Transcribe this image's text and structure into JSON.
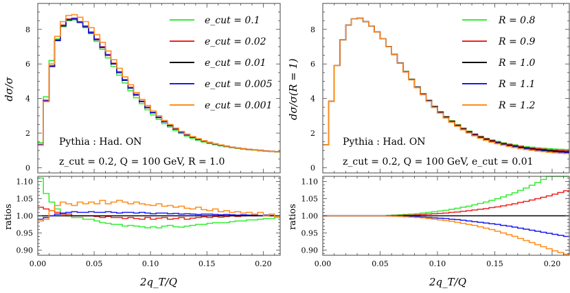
{
  "chart_data": [
    {
      "type": "line",
      "step": true,
      "xlabel": "2q_T/Q",
      "ylabel": "dσ/σ",
      "xlim": [
        0,
        0.215
      ],
      "ylim": [
        -0.3,
        9.5
      ],
      "xticks": [
        "0.00",
        "0.05",
        "0.10",
        "0.15",
        "0.20"
      ],
      "yticks": [
        "0",
        "2",
        "4",
        "6",
        "8"
      ],
      "annotations": [
        "Pythia : Had. ON",
        "z_cut = 0.2, Q = 100 GeV, R = 1.0"
      ],
      "legend_position": "top-right",
      "x": [
        0.0,
        0.005,
        0.01,
        0.015,
        0.02,
        0.025,
        0.03,
        0.035,
        0.04,
        0.045,
        0.05,
        0.055,
        0.06,
        0.065,
        0.07,
        0.075,
        0.08,
        0.085,
        0.09,
        0.095,
        0.1,
        0.105,
        0.11,
        0.115,
        0.12,
        0.125,
        0.13,
        0.135,
        0.14,
        0.145,
        0.15,
        0.155,
        0.16,
        0.165,
        0.17,
        0.175,
        0.18,
        0.185,
        0.19,
        0.195,
        0.2,
        0.205,
        0.21
      ],
      "series": [
        {
          "name": "e_cut = 0.1",
          "color": "#33ee33",
          "values": [
            1.45,
            4.1,
            6.2,
            7.45,
            8.15,
            8.5,
            8.55,
            8.4,
            8.1,
            7.75,
            7.3,
            6.85,
            6.35,
            5.85,
            5.35,
            4.9,
            4.45,
            4.05,
            3.7,
            3.35,
            3.05,
            2.8,
            2.55,
            2.35,
            2.15,
            1.98,
            1.83,
            1.7,
            1.59,
            1.49,
            1.4,
            1.33,
            1.27,
            1.21,
            1.16,
            1.12,
            1.08,
            1.04,
            1.01,
            0.98,
            0.96,
            0.94,
            0.92
          ]
        },
        {
          "name": "e_cut = 0.02",
          "color": "#ee2222",
          "values": [
            1.35,
            3.9,
            5.9,
            7.4,
            8.25,
            8.6,
            8.65,
            8.45,
            8.2,
            7.85,
            7.45,
            7.0,
            6.55,
            6.05,
            5.55,
            5.1,
            4.65,
            4.25,
            3.85,
            3.5,
            3.2,
            2.92,
            2.67,
            2.45,
            2.25,
            2.07,
            1.91,
            1.77,
            1.65,
            1.55,
            1.46,
            1.38,
            1.31,
            1.25,
            1.19,
            1.14,
            1.1,
            1.06,
            1.03,
            1.0,
            0.97,
            0.95,
            0.93
          ]
        },
        {
          "name": "e_cut = 0.01",
          "color": "#000000",
          "values": [
            1.32,
            3.85,
            5.85,
            7.35,
            8.2,
            8.55,
            8.6,
            8.4,
            8.15,
            7.8,
            7.4,
            6.95,
            6.5,
            6.0,
            5.5,
            5.05,
            4.6,
            4.2,
            3.82,
            3.47,
            3.17,
            2.9,
            2.65,
            2.43,
            2.23,
            2.05,
            1.9,
            1.76,
            1.64,
            1.54,
            1.45,
            1.37,
            1.3,
            1.24,
            1.18,
            1.13,
            1.09,
            1.05,
            1.02,
            0.99,
            0.96,
            0.94,
            0.92
          ]
        },
        {
          "name": "e_cut = 0.005",
          "color": "#1a1aee",
          "values": [
            1.33,
            3.87,
            5.87,
            7.37,
            8.22,
            8.57,
            8.62,
            8.42,
            8.17,
            7.82,
            7.42,
            6.97,
            6.52,
            6.02,
            5.52,
            5.07,
            4.62,
            4.22,
            3.84,
            3.49,
            3.19,
            2.92,
            2.66,
            2.44,
            2.24,
            2.06,
            1.91,
            1.77,
            1.65,
            1.55,
            1.46,
            1.38,
            1.31,
            1.25,
            1.19,
            1.14,
            1.1,
            1.06,
            1.03,
            1.0,
            0.97,
            0.95,
            0.93
          ]
        },
        {
          "name": "e_cut = 0.001",
          "color": "#ff8c1a",
          "values": [
            1.3,
            3.82,
            6.0,
            7.6,
            8.45,
            8.8,
            8.85,
            8.7,
            8.45,
            8.1,
            7.7,
            7.25,
            6.75,
            6.25,
            5.75,
            5.25,
            4.8,
            4.35,
            3.95,
            3.6,
            3.28,
            3.0,
            2.73,
            2.5,
            2.29,
            2.1,
            1.94,
            1.8,
            1.68,
            1.57,
            1.47,
            1.39,
            1.32,
            1.25,
            1.19,
            1.14,
            1.1,
            1.06,
            1.02,
            0.99,
            0.97,
            0.95,
            0.92
          ]
        }
      ],
      "ratio_panel": {
        "ylabel": "ratios",
        "ylim": [
          0.885,
          1.115
        ],
        "yticks": [
          "0.90",
          "0.95",
          "1.00",
          "1.05",
          "1.10"
        ],
        "series": [
          {
            "color": "#33ee33",
            "values": [
              1.11,
              1.065,
              1.04,
              1.02,
              1.005,
              1.0,
              0.995,
              0.995,
              0.99,
              0.99,
              0.985,
              0.98,
              0.978,
              0.975,
              0.975,
              0.97,
              0.972,
              0.97,
              0.968,
              0.965,
              0.968,
              0.965,
              0.97,
              0.972,
              0.968,
              0.967,
              0.97,
              0.972,
              0.975,
              0.975,
              0.978,
              0.98,
              0.98,
              0.98,
              0.983,
              0.985,
              0.985,
              0.988,
              0.988,
              0.99,
              0.992,
              0.992,
              0.995
            ]
          },
          {
            "color": "#ee2222",
            "values": [
              1.025,
              1.02,
              1.015,
              1.01,
              1.005,
              1.005,
              1.0,
              1.0,
              1.0,
              1.0,
              0.998,
              0.995,
              0.998,
              0.995,
              0.995,
              0.992,
              0.995,
              0.992,
              0.99,
              0.995,
              0.99,
              0.993,
              0.995,
              0.99,
              0.992,
              0.995,
              0.99,
              0.993,
              0.995,
              0.997,
              0.995,
              0.998,
              0.996,
              0.998,
              1.0,
              0.998,
              1.0,
              1.002,
              1.0,
              1.0,
              1.002,
              1.0,
              1.0
            ]
          },
          {
            "color": "#000000",
            "values": [
              1.0,
              1.0,
              1.0,
              1.0,
              1.0,
              1.0,
              1.0,
              1.0,
              1.0,
              1.0,
              1.0,
              1.0,
              1.0,
              1.0,
              1.0,
              1.0,
              1.0,
              1.0,
              1.0,
              1.0,
              1.0,
              1.0,
              1.0,
              1.0,
              1.0,
              1.0,
              1.0,
              1.0,
              1.0,
              1.0,
              1.0,
              1.0,
              1.0,
              1.0,
              1.0,
              1.0,
              1.0,
              1.0,
              1.0,
              1.0,
              1.0,
              1.0,
              1.0
            ]
          },
          {
            "color": "#1a1aee",
            "values": [
              0.99,
              0.995,
              1.0,
              1.005,
              1.008,
              1.01,
              1.012,
              1.01,
              1.01,
              1.012,
              1.01,
              1.01,
              1.012,
              1.01,
              1.008,
              1.01,
              1.01,
              1.008,
              1.01,
              1.008,
              1.006,
              1.008,
              1.008,
              1.006,
              1.007,
              1.005,
              1.006,
              1.005,
              1.004,
              1.005,
              1.005,
              1.004,
              1.003,
              1.004,
              1.003,
              1.002,
              1.003,
              1.002,
              1.002,
              1.001,
              1.002,
              1.001,
              1.0
            ]
          },
          {
            "color": "#ff8c1a",
            "values": [
              0.985,
              0.99,
              1.015,
              1.03,
              1.04,
              1.035,
              1.03,
              1.04,
              1.035,
              1.04,
              1.035,
              1.045,
              1.035,
              1.04,
              1.045,
              1.04,
              1.035,
              1.04,
              1.035,
              1.032,
              1.03,
              1.035,
              1.028,
              1.03,
              1.025,
              1.028,
              1.022,
              1.02,
              1.025,
              1.018,
              1.015,
              1.02,
              1.012,
              1.015,
              1.01,
              1.012,
              1.008,
              1.01,
              1.005,
              1.01,
              1.0,
              1.005,
              0.998
            ]
          }
        ]
      }
    },
    {
      "type": "line",
      "step": true,
      "xlabel": "2q_T/Q",
      "ylabel": "dσ/σ(R = 1)",
      "xlim": [
        0,
        0.215
      ],
      "ylim": [
        -0.3,
        9.5
      ],
      "xticks": [
        "0.00",
        "0.05",
        "0.10",
        "0.15",
        "0.20"
      ],
      "yticks": [
        "0",
        "2",
        "4",
        "6",
        "8"
      ],
      "annotations": [
        "Pythia : Had. ON",
        "z_cut = 0.2, Q = 100 GeV, e_cut = 0.01"
      ],
      "legend_position": "top-right",
      "x": [
        0.0,
        0.005,
        0.01,
        0.015,
        0.02,
        0.025,
        0.03,
        0.035,
        0.04,
        0.045,
        0.05,
        0.055,
        0.06,
        0.065,
        0.07,
        0.075,
        0.08,
        0.085,
        0.09,
        0.095,
        0.1,
        0.105,
        0.11,
        0.115,
        0.12,
        0.125,
        0.13,
        0.135,
        0.14,
        0.145,
        0.15,
        0.155,
        0.16,
        0.165,
        0.17,
        0.175,
        0.18,
        0.185,
        0.19,
        0.195,
        0.2,
        0.205,
        0.21
      ],
      "base_values": [
        1.32,
        3.85,
        5.9,
        7.4,
        8.25,
        8.6,
        8.65,
        8.45,
        8.2,
        7.85,
        7.45,
        7.0,
        6.55,
        6.05,
        5.55,
        5.1,
        4.65,
        4.25,
        3.87,
        3.52,
        3.2,
        2.92,
        2.67,
        2.44,
        2.24,
        2.06,
        1.9,
        1.76,
        1.64,
        1.54,
        1.45,
        1.37,
        1.3,
        1.24,
        1.18,
        1.13,
        1.09,
        1.05,
        1.02,
        0.99,
        0.96,
        0.94,
        0.92
      ],
      "series": [
        {
          "name": "R = 0.8",
          "color": "#33ee33",
          "ratio": [
            1.0,
            1.0,
            1.0,
            1.0,
            1.0,
            1.0,
            1.0,
            1.0,
            1.0,
            1.0,
            1.0,
            1.001,
            1.002,
            1.003,
            1.004,
            1.005,
            1.006,
            1.008,
            1.01,
            1.012,
            1.014,
            1.016,
            1.019,
            1.022,
            1.025,
            1.028,
            1.032,
            1.036,
            1.04,
            1.045,
            1.05,
            1.055,
            1.061,
            1.067,
            1.074,
            1.081,
            1.089,
            1.097,
            1.106,
            1.115,
            1.125,
            1.135,
            1.145
          ]
        },
        {
          "name": "R = 0.9",
          "color": "#ee2222",
          "ratio": [
            1.0,
            1.0,
            1.0,
            1.0,
            1.0,
            1.0,
            1.0,
            1.0,
            1.0,
            1.0,
            1.0,
            1.0,
            1.001,
            1.001,
            1.002,
            1.002,
            1.003,
            1.004,
            1.005,
            1.006,
            1.007,
            1.008,
            1.01,
            1.011,
            1.013,
            1.015,
            1.017,
            1.019,
            1.021,
            1.024,
            1.026,
            1.029,
            1.032,
            1.035,
            1.039,
            1.042,
            1.046,
            1.05,
            1.054,
            1.058,
            1.063,
            1.068,
            1.073
          ]
        },
        {
          "name": "R = 1.0",
          "color": "#000000",
          "ratio": [
            1.0,
            1.0,
            1.0,
            1.0,
            1.0,
            1.0,
            1.0,
            1.0,
            1.0,
            1.0,
            1.0,
            1.0,
            1.0,
            1.0,
            1.0,
            1.0,
            1.0,
            1.0,
            1.0,
            1.0,
            1.0,
            1.0,
            1.0,
            1.0,
            1.0,
            1.0,
            1.0,
            1.0,
            1.0,
            1.0,
            1.0,
            1.0,
            1.0,
            1.0,
            1.0,
            1.0,
            1.0,
            1.0,
            1.0,
            1.0,
            1.0,
            1.0,
            1.0
          ]
        },
        {
          "name": "R = 1.1",
          "color": "#1a1aee",
          "ratio": [
            1.0,
            1.0,
            1.0,
            1.0,
            1.0,
            1.0,
            1.0,
            1.0,
            1.0,
            1.0,
            1.0,
            1.0,
            0.999,
            0.999,
            0.998,
            0.998,
            0.997,
            0.996,
            0.995,
            0.994,
            0.993,
            0.992,
            0.99,
            0.989,
            0.987,
            0.985,
            0.983,
            0.981,
            0.979,
            0.977,
            0.975,
            0.972,
            0.97,
            0.967,
            0.964,
            0.961,
            0.958,
            0.955,
            0.952,
            0.949,
            0.946,
            0.943,
            0.94
          ]
        },
        {
          "name": "R = 1.2",
          "color": "#ff8c1a",
          "ratio": [
            1.0,
            1.0,
            1.0,
            1.0,
            1.0,
            1.0,
            1.0,
            1.0,
            1.0,
            1.0,
            1.0,
            0.999,
            0.999,
            0.998,
            0.997,
            0.996,
            0.995,
            0.994,
            0.992,
            0.99,
            0.988,
            0.986,
            0.984,
            0.981,
            0.978,
            0.975,
            0.972,
            0.968,
            0.964,
            0.96,
            0.955,
            0.95,
            0.945,
            0.94,
            0.934,
            0.928,
            0.922,
            0.916,
            0.91,
            0.904,
            0.898,
            0.893,
            0.888
          ]
        }
      ],
      "ratio_panel": {
        "ylabel": "ratios",
        "ylim": [
          0.885,
          1.115
        ],
        "yticks": [
          "0.90",
          "0.95",
          "1.00",
          "1.05",
          "1.10"
        ]
      }
    }
  ]
}
